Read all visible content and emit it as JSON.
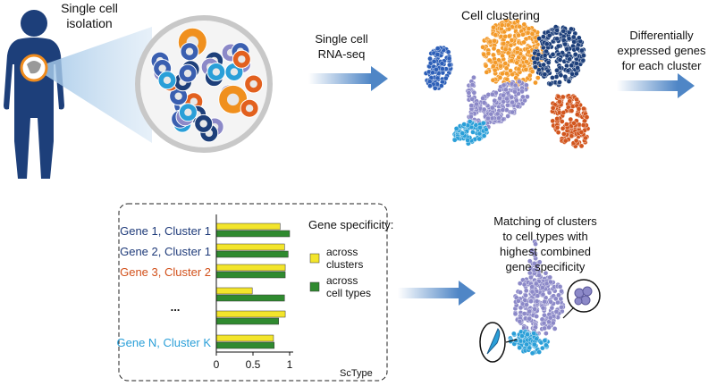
{
  "steps": {
    "isolation": {
      "lines": [
        "Single cell",
        "isolation"
      ]
    },
    "sequencing": {
      "lines": [
        "Single cell",
        "RNA-seq"
      ]
    },
    "clustering": {
      "title": "Cell clustering"
    },
    "de_genes": {
      "lines": [
        "Differentially",
        "expressed genes",
        "for each cluster"
      ]
    },
    "matching": {
      "lines": [
        "Matching of clusters",
        "to cell types with",
        "highest combined",
        "gene specificity"
      ]
    }
  },
  "bar_panel": {
    "type": "bar",
    "orientation": "horizontal",
    "categories": [
      "Gene 1, Cluster 1",
      "Gene 2, Cluster 1",
      "Gene 3, Cluster 2",
      null,
      null,
      "Gene N, Cluster K"
    ],
    "category_colors": [
      "#1f3b7a",
      "#1f3b7a",
      "#d2501a",
      null,
      null,
      "#2a9fd8"
    ],
    "ellipsis": "...",
    "series": [
      {
        "name": "across clusters",
        "color": "#f3e52b",
        "values": [
          0.87,
          0.93,
          0.94,
          0.49,
          0.94,
          0.78
        ]
      },
      {
        "name": "across cell types",
        "color": "#2f8a2f",
        "values": [
          1.0,
          0.98,
          0.94,
          0.93,
          0.85,
          0.79
        ]
      }
    ],
    "legend_title": "Gene specificity:",
    "xlim": [
      0,
      1
    ],
    "xticks": [
      0,
      0.5,
      1
    ],
    "footer": "ScType"
  }
}
